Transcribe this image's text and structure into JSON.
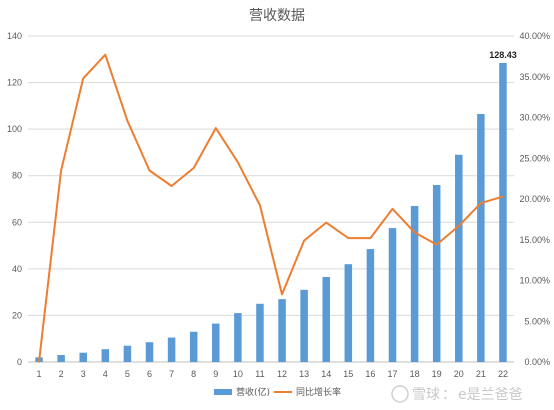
{
  "chart_data": {
    "type": "bar",
    "title": "营收数据",
    "categories": [
      "1",
      "2",
      "3",
      "4",
      "5",
      "6",
      "7",
      "8",
      "9",
      "10",
      "11",
      "12",
      "13",
      "14",
      "15",
      "16",
      "17",
      "18",
      "19",
      "20",
      "21",
      "22"
    ],
    "series": [
      {
        "name": "营收(亿)",
        "type": "bar",
        "axis": "left",
        "color": "#5b9bd5",
        "values": [
          2,
          3,
          4,
          5.5,
          7,
          8.5,
          10.5,
          13,
          16.5,
          21,
          25,
          27,
          31,
          36.5,
          42,
          48.5,
          57.5,
          67,
          76,
          89,
          106.5,
          128.43
        ]
      },
      {
        "name": "同比增长率",
        "type": "line",
        "axis": "right",
        "color": "#ed7d31",
        "values": [
          0.0,
          23.5,
          34.8,
          37.7,
          29.6,
          23.5,
          21.6,
          23.8,
          28.7,
          24.5,
          19.2,
          8.3,
          14.9,
          17.1,
          15.2,
          15.2,
          18.8,
          15.9,
          14.4,
          16.7,
          19.5,
          20.3
        ]
      }
    ],
    "y_left": {
      "min": 0,
      "max": 140,
      "ticks": [
        "0",
        "20",
        "40",
        "60",
        "80",
        "100",
        "120",
        "140"
      ]
    },
    "y_right": {
      "min": 0,
      "max": 40,
      "ticks": [
        "0.00%",
        "5.00%",
        "10.00%",
        "15.00%",
        "20.00%",
        "25.00%",
        "30.00%",
        "35.00%",
        "40.00%"
      ]
    },
    "data_labels": [
      {
        "index": 21,
        "text": "128.43"
      }
    ],
    "grid": true,
    "legend_position": "bottom"
  },
  "watermark": {
    "prefix": "雪球",
    "separator": "：",
    "user": "e是兰爸爸"
  },
  "colors": {
    "grid": "#d9d9d9",
    "axis": "#bfbfbf"
  }
}
